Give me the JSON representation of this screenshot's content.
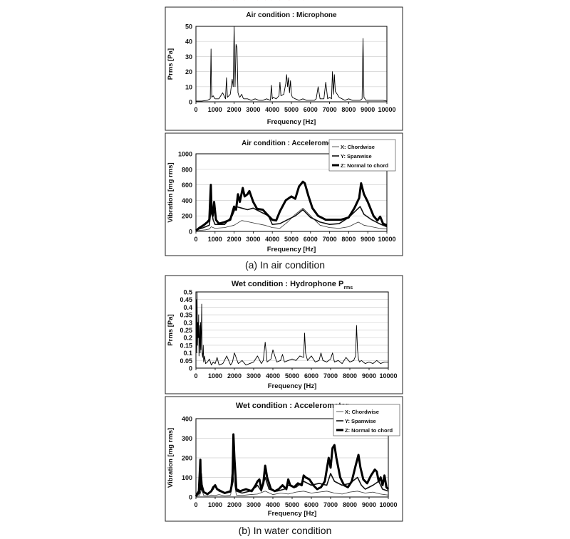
{
  "captions": {
    "air": "(a) In air condition",
    "water": "(b) In water condition"
  },
  "colors": {
    "dashed_guides": "#d62020",
    "trace": "#111111",
    "axis": "#000000"
  },
  "chart_data": [
    {
      "id": "air_mic",
      "type": "line",
      "title": "Air condition : Microphone",
      "xlabel": "Frequency [Hz]",
      "ylabel": "Prms [Pa]",
      "xlim": [
        0,
        10000
      ],
      "ylim": [
        0,
        50
      ],
      "xticks": [
        0,
        1000,
        2000,
        3000,
        4000,
        5000,
        6000,
        7000,
        8000,
        9000,
        10000
      ],
      "yticks": [
        0,
        10,
        20,
        30,
        40,
        50
      ],
      "grid": true,
      "series": [
        {
          "x": [
            0,
            300,
            600,
            750,
            790,
            810,
            830,
            900,
            1000,
            1200,
            1400,
            1550,
            1600,
            1650,
            1800,
            1900,
            1950,
            2000,
            2050,
            2100,
            2150,
            2200,
            2250,
            2300,
            2400,
            2450,
            2500,
            2700,
            2900,
            3100,
            3300,
            3500,
            3700,
            3900,
            3950,
            4000,
            4050,
            4200,
            4350,
            4400,
            4450,
            4600,
            4700,
            4750,
            4800,
            4850,
            4900,
            4950,
            5000,
            5050,
            5200,
            5400,
            5600,
            5800,
            6000,
            6200,
            6300,
            6400,
            6500,
            6700,
            6800,
            6900,
            7000,
            7100,
            7150,
            7200,
            7250,
            7300,
            7400,
            7500,
            7650,
            7800,
            8000,
            8200,
            8400,
            8600,
            8700,
            8750,
            8800,
            8850,
            8900,
            9000,
            9200,
            9500,
            9800,
            10000
          ],
          "y": [
            0.5,
            0.5,
            1,
            2,
            35,
            14,
            3,
            4,
            2,
            2,
            6,
            2,
            16,
            3,
            5,
            15,
            10,
            50,
            10,
            38,
            36,
            6,
            4,
            3,
            5,
            3,
            2,
            2,
            1,
            2,
            1,
            1,
            2,
            1,
            11,
            2,
            3,
            2,
            4,
            13,
            4,
            5,
            12,
            18,
            10,
            16,
            6,
            14,
            5,
            3,
            2,
            1,
            2,
            1,
            1,
            1,
            2,
            10,
            2,
            2,
            13,
            2,
            3,
            2,
            20,
            5,
            18,
            7,
            5,
            3,
            2,
            1,
            2,
            1,
            1,
            1,
            2,
            42,
            3,
            2,
            1,
            1,
            1,
            1,
            1,
            0.5
          ]
        }
      ]
    },
    {
      "id": "air_acc",
      "type": "line",
      "title": "Air condition : Accelerometer",
      "xlabel": "Frequency [Hz]",
      "ylabel": "Vibration [mg rms]",
      "xlim": [
        0,
        10000
      ],
      "ylim": [
        0,
        1000
      ],
      "xticks": [
        0,
        1000,
        2000,
        3000,
        4000,
        5000,
        6000,
        7000,
        8000,
        9000,
        10000
      ],
      "yticks": [
        0,
        200,
        400,
        600,
        800,
        1000
      ],
      "grid": true,
      "legend": "top-right",
      "series": [
        {
          "name": "X: Chordwise",
          "x": [
            0,
            300,
            500,
            700,
            800,
            1000,
            1500,
            2000,
            2400,
            2800,
            3200,
            3600,
            4000,
            4400,
            4800,
            5200,
            5600,
            6000,
            6500,
            7000,
            7500,
            8000,
            8500,
            8800,
            9200,
            9600,
            10000
          ],
          "y": [
            10,
            15,
            20,
            30,
            60,
            40,
            50,
            80,
            140,
            120,
            100,
            80,
            50,
            40,
            120,
            220,
            300,
            200,
            80,
            50,
            40,
            60,
            120,
            80,
            60,
            40,
            30
          ]
        },
        {
          "name": "Y: Spanwise",
          "x": [
            0,
            300,
            500,
            700,
            800,
            900,
            1000,
            1500,
            1900,
            2100,
            2400,
            2700,
            3000,
            3400,
            3800,
            4000,
            4400,
            4800,
            5200,
            5600,
            6000,
            6500,
            7000,
            7500,
            8000,
            8300,
            8600,
            8800,
            9200,
            9600,
            10000
          ],
          "y": [
            20,
            40,
            60,
            80,
            300,
            150,
            90,
            90,
            200,
            320,
            300,
            280,
            300,
            250,
            200,
            90,
            100,
            150,
            200,
            280,
            180,
            120,
            90,
            100,
            180,
            250,
            320,
            220,
            150,
            100,
            60
          ]
        },
        {
          "name": "Z: Normal to chord",
          "x": [
            0,
            200,
            400,
            600,
            700,
            780,
            820,
            880,
            950,
            1050,
            1200,
            1500,
            1800,
            2000,
            2100,
            2200,
            2300,
            2450,
            2550,
            2700,
            2800,
            3000,
            3200,
            3500,
            3800,
            4000,
            4200,
            4400,
            4700,
            5000,
            5200,
            5400,
            5600,
            5700,
            5900,
            6100,
            6400,
            6800,
            7200,
            7600,
            8000,
            8300,
            8550,
            8650,
            8800,
            9000,
            9300,
            9500,
            9650,
            9800,
            10000
          ],
          "y": [
            10,
            50,
            80,
            120,
            150,
            600,
            250,
            200,
            380,
            150,
            100,
            120,
            150,
            320,
            280,
            480,
            380,
            560,
            450,
            480,
            520,
            380,
            290,
            280,
            200,
            150,
            140,
            260,
            400,
            450,
            420,
            580,
            640,
            620,
            450,
            300,
            200,
            150,
            150,
            150,
            180,
            300,
            430,
            620,
            480,
            380,
            200,
            140,
            190,
            100,
            80
          ]
        }
      ]
    },
    {
      "id": "wet_hyd",
      "type": "line",
      "title": "Wet condition : Hydrophone P",
      "title_sub": "rms",
      "xlabel": "Frequency [Hz]",
      "ylabel": "Prms [Pa]",
      "xlim": [
        0,
        10000
      ],
      "ylim": [
        0,
        0.5
      ],
      "xticks": [
        0,
        1000,
        2000,
        3000,
        4000,
        5000,
        6000,
        7000,
        8000,
        9000,
        10000
      ],
      "yticks": [
        0,
        0.05,
        0.1,
        0.15,
        0.2,
        0.25,
        0.3,
        0.35,
        0.4,
        0.45,
        0.5
      ],
      "ytick_labels": [
        "0",
        "0.05",
        "0.1",
        "0.15",
        "0.2",
        "0.25",
        "0.3",
        "0.35",
        "0.4",
        "0.45",
        "0.5"
      ],
      "grid": true,
      "series": [
        {
          "x": [
            0,
            20,
            40,
            60,
            80,
            100,
            120,
            140,
            160,
            180,
            200,
            220,
            240,
            260,
            280,
            300,
            320,
            350,
            380,
            400,
            450,
            500,
            600,
            700,
            800,
            900,
            1000,
            1100,
            1200,
            1400,
            1600,
            1800,
            1900,
            2000,
            2200,
            2400,
            2600,
            2800,
            3000,
            3200,
            3400,
            3500,
            3600,
            3700,
            3800,
            3900,
            4000,
            4200,
            4400,
            4500,
            4600,
            4800,
            5000,
            5200,
            5400,
            5600,
            5650,
            5700,
            5800,
            6000,
            6200,
            6400,
            6500,
            6600,
            6800,
            7000,
            7100,
            7200,
            7400,
            7600,
            7800,
            8000,
            8200,
            8300,
            8350,
            8400,
            8450,
            8500,
            8600,
            8800,
            9000,
            9200,
            9400,
            9600,
            9800,
            10000
          ],
          "y": [
            0.05,
            0.45,
            0.1,
            0.5,
            0.15,
            0.3,
            0.2,
            0.35,
            0.08,
            0.2,
            0.28,
            0.1,
            0.3,
            0.12,
            0.25,
            0.42,
            0.1,
            0.07,
            0.15,
            0.04,
            0.08,
            0.03,
            0.04,
            0.06,
            0.02,
            0.04,
            0.03,
            0.07,
            0.02,
            0.03,
            0.08,
            0.02,
            0.04,
            0.1,
            0.03,
            0.05,
            0.02,
            0.03,
            0.04,
            0.08,
            0.03,
            0.05,
            0.17,
            0.04,
            0.05,
            0.06,
            0.12,
            0.04,
            0.05,
            0.09,
            0.04,
            0.05,
            0.06,
            0.05,
            0.08,
            0.07,
            0.23,
            0.1,
            0.05,
            0.08,
            0.04,
            0.05,
            0.1,
            0.05,
            0.04,
            0.06,
            0.1,
            0.04,
            0.05,
            0.03,
            0.07,
            0.04,
            0.05,
            0.08,
            0.28,
            0.12,
            0.06,
            0.04,
            0.05,
            0.03,
            0.04,
            0.03,
            0.05,
            0.03,
            0.04,
            0.04
          ]
        }
      ]
    },
    {
      "id": "wet_acc",
      "type": "line",
      "title": "Wet condition : Accelerometer",
      "xlabel": "Frequency [Hz]",
      "ylabel": "Vibration [mg rms]",
      "xlim": [
        0,
        10000
      ],
      "ylim": [
        0,
        400
      ],
      "xticks": [
        0,
        1000,
        2000,
        3000,
        4000,
        5000,
        6000,
        7000,
        8000,
        9000,
        10000
      ],
      "yticks": [
        0,
        100,
        200,
        300,
        400
      ],
      "grid": true,
      "legend": "top-right",
      "series": [
        {
          "name": "X: Chordwise",
          "x": [
            0,
            200,
            300,
            400,
            600,
            800,
            1000,
            1200,
            1500,
            1800,
            1950,
            2100,
            2400,
            2800,
            3200,
            3600,
            4000,
            4400,
            4800,
            5200,
            5600,
            6000,
            6400,
            6800,
            7200,
            7600,
            8000,
            8400,
            8800,
            9200,
            9600,
            10000
          ],
          "y": [
            2,
            10,
            40,
            8,
            5,
            10,
            8,
            12,
            6,
            10,
            100,
            10,
            8,
            12,
            15,
            30,
            12,
            20,
            15,
            25,
            30,
            20,
            25,
            30,
            20,
            15,
            25,
            30,
            20,
            25,
            15,
            10
          ]
        },
        {
          "name": "Y: Spanwise",
          "x": [
            0,
            200,
            280,
            350,
            600,
            900,
            1000,
            1200,
            1500,
            1800,
            1950,
            2100,
            2400,
            2800,
            3100,
            3200,
            3400,
            3600,
            3800,
            4200,
            4600,
            4800,
            5200,
            5600,
            6000,
            6400,
            6800,
            7000,
            7200,
            7600,
            8000,
            8400,
            8600,
            8800,
            9200,
            9500,
            9700,
            10000
          ],
          "y": [
            5,
            20,
            120,
            30,
            15,
            40,
            60,
            30,
            20,
            25,
            200,
            30,
            20,
            30,
            50,
            60,
            30,
            100,
            40,
            30,
            40,
            60,
            50,
            80,
            60,
            70,
            60,
            120,
            80,
            60,
            70,
            100,
            60,
            40,
            60,
            80,
            40,
            30
          ]
        },
        {
          "name": "Z: Normal to chord",
          "x": [
            0,
            150,
            230,
            260,
            300,
            400,
            600,
            800,
            900,
            1000,
            1100,
            1300,
            1500,
            1800,
            1900,
            1950,
            2000,
            2100,
            2300,
            2600,
            2900,
            3100,
            3200,
            3300,
            3400,
            3500,
            3600,
            3700,
            3900,
            4100,
            4300,
            4500,
            4700,
            4800,
            4900,
            5100,
            5300,
            5500,
            5600,
            5700,
            5900,
            6100,
            6300,
            6500,
            6700,
            6900,
            7000,
            7100,
            7200,
            7300,
            7500,
            7700,
            7900,
            8100,
            8300,
            8450,
            8550,
            8700,
            8900,
            9100,
            9300,
            9400,
            9500,
            9600,
            9700,
            9800,
            9900,
            10000
          ],
          "y": [
            5,
            30,
            190,
            40,
            60,
            25,
            15,
            30,
            50,
            60,
            40,
            30,
            20,
            30,
            80,
            320,
            200,
            40,
            30,
            40,
            30,
            60,
            80,
            90,
            40,
            70,
            160,
            100,
            40,
            30,
            40,
            60,
            40,
            90,
            60,
            50,
            70,
            60,
            110,
            100,
            90,
            60,
            40,
            50,
            80,
            200,
            150,
            250,
            265,
            200,
            100,
            60,
            50,
            80,
            160,
            215,
            150,
            90,
            70,
            110,
            140,
            130,
            80,
            100,
            60,
            110,
            50,
            40
          ]
        }
      ]
    }
  ]
}
